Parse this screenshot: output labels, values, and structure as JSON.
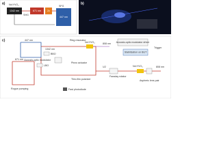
{
  "panel_a": {
    "label": "a)",
    "laser": "Nd:YVO₄",
    "fundamental": "1342 nm",
    "shg": "SHG",
    "second_harmonic": "671 nm",
    "doubling": "2x",
    "sfg": "SFG",
    "output": "447 nm"
  },
  "panel_b": {
    "label": "b)"
  },
  "panel_c": {
    "label": "c)",
    "output": "447 nm",
    "ring": "Ring resonator",
    "crystal": "Nd:YVO₄",
    "pump": "808 nm",
    "aom_driver": "Acousto-optic modulator driver",
    "trigger": "Trigger",
    "stabilization": "Stabilization on BUT",
    "aom": "Acousto-optic modulator",
    "piezo": "Piezo actuator",
    "polarizer": "Thin-film polarizer",
    "photodiode": "Fast photodiode",
    "faraday": "Faraday rotator",
    "lens": "Aspheric lens pair",
    "pump2": "808 nm",
    "crystal2": "Nd:YVO₄",
    "halfwave": "λ/2",
    "lbo": "LBO",
    "bbo": "BBO",
    "red": "671 nm",
    "ir": "1342 nm",
    "rogue": "Rogue pumping"
  }
}
